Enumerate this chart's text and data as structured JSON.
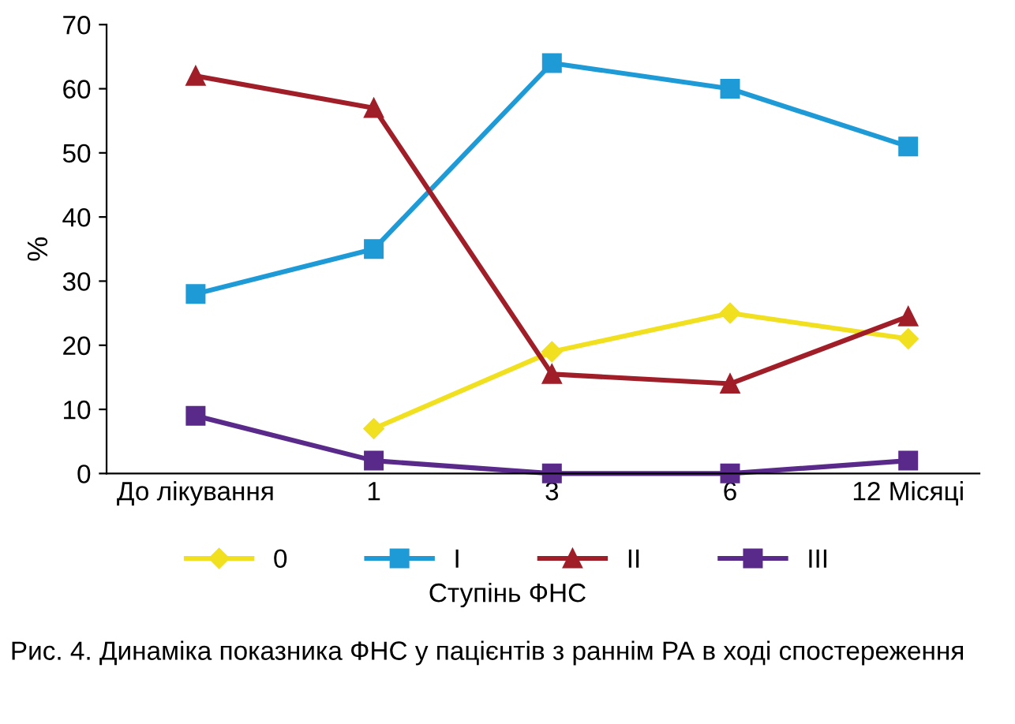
{
  "chart_data": {
    "type": "line",
    "ylabel": "%",
    "legend_title": "Ступінь ФНС",
    "categories": [
      "До лікування",
      "1",
      "3",
      "6",
      "12 Місяці"
    ],
    "series": [
      {
        "name": "0",
        "color": "#f0e020",
        "marker": "diamond",
        "values": [
          null,
          7,
          19,
          25,
          21
        ]
      },
      {
        "name": "I",
        "color": "#1e9bd7",
        "marker": "square",
        "values": [
          28,
          35,
          64,
          60,
          51
        ]
      },
      {
        "name": "II",
        "color": "#a01e28",
        "marker": "triangle",
        "values": [
          62,
          57,
          15.5,
          14,
          24.5
        ]
      },
      {
        "name": "III",
        "color": "#5a2a8a",
        "marker": "square",
        "values": [
          9,
          2,
          0,
          0,
          2
        ]
      }
    ],
    "ylim": [
      0,
      70
    ],
    "yticks": [
      0,
      10,
      20,
      30,
      40,
      50,
      60,
      70
    ],
    "grid": false,
    "legend": "bottom",
    "annotations": [
      "Рис. 4. Динаміка показника ФНС у пацієнтів з раннім РА в ході спостереження"
    ]
  }
}
